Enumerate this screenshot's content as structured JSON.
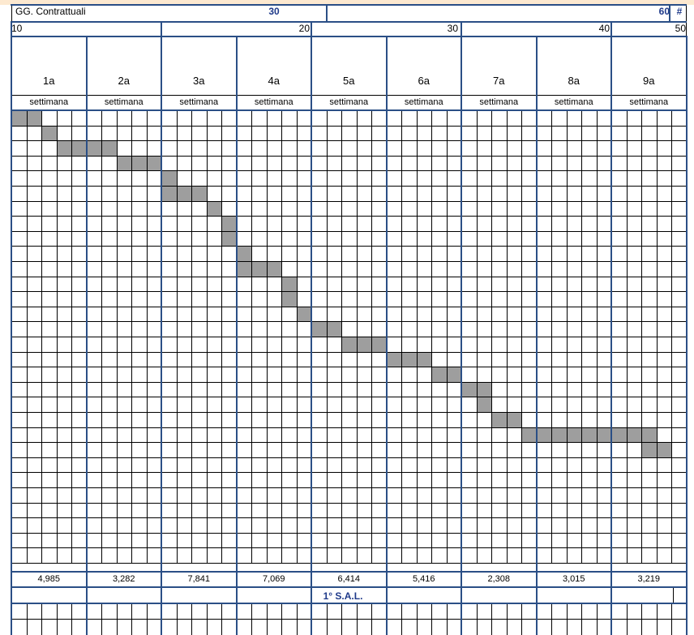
{
  "header": {
    "label": "GG. Contrattuali",
    "value_mid": "30",
    "value_right": "60",
    "hash": "#"
  },
  "scale": {
    "left": "10",
    "marks": [
      "20",
      "30",
      "40",
      "50"
    ]
  },
  "weeks": [
    {
      "number": "1a",
      "label": "settimana",
      "total": "4,985"
    },
    {
      "number": "2a",
      "label": "settimana",
      "total": "3,282"
    },
    {
      "number": "3a",
      "label": "settimana",
      "total": "7,841"
    },
    {
      "number": "4a",
      "label": "settimana",
      "total": "7,069"
    },
    {
      "number": "5a",
      "label": "settimana",
      "total": "6,414"
    },
    {
      "number": "6a",
      "label": "settimana",
      "total": "5,416"
    },
    {
      "number": "7a",
      "label": "settimana",
      "total": "2,308"
    },
    {
      "number": "8a",
      "label": "settimana",
      "total": "3,015"
    },
    {
      "number": "9a",
      "label": "settimana",
      "total": "3,219"
    }
  ],
  "sal_label": "1° S.A.L.",
  "gantt": {
    "filled_cells": [
      [
        0,
        0
      ],
      [
        0,
        1
      ],
      [
        1,
        2
      ],
      [
        2,
        3
      ],
      [
        2,
        4
      ],
      [
        2,
        5
      ],
      [
        2,
        6
      ],
      [
        3,
        7
      ],
      [
        3,
        8
      ],
      [
        3,
        9
      ],
      [
        4,
        10
      ],
      [
        5,
        10
      ],
      [
        5,
        11
      ],
      [
        5,
        12
      ],
      [
        6,
        13
      ],
      [
        7,
        14
      ],
      [
        8,
        14
      ],
      [
        9,
        15
      ],
      [
        10,
        15
      ],
      [
        10,
        16
      ],
      [
        10,
        17
      ],
      [
        11,
        18
      ],
      [
        12,
        18
      ],
      [
        13,
        19
      ],
      [
        14,
        20
      ],
      [
        14,
        21
      ],
      [
        15,
        22
      ],
      [
        15,
        23
      ],
      [
        15,
        24
      ],
      [
        16,
        25
      ],
      [
        16,
        26
      ],
      [
        16,
        27
      ],
      [
        17,
        28
      ],
      [
        17,
        29
      ],
      [
        18,
        30
      ],
      [
        18,
        31
      ],
      [
        19,
        31
      ],
      [
        20,
        32
      ],
      [
        20,
        33
      ],
      [
        21,
        34
      ],
      [
        21,
        35
      ],
      [
        21,
        36
      ],
      [
        21,
        37
      ],
      [
        21,
        38
      ],
      [
        21,
        39
      ],
      [
        21,
        40
      ],
      [
        21,
        41
      ],
      [
        21,
        42
      ],
      [
        22,
        42
      ],
      [
        22,
        43
      ]
    ]
  },
  "colors": {
    "blue_border": "#2b4f86",
    "header_text": "#1f3a8a",
    "fill": "#9e9e9e"
  }
}
